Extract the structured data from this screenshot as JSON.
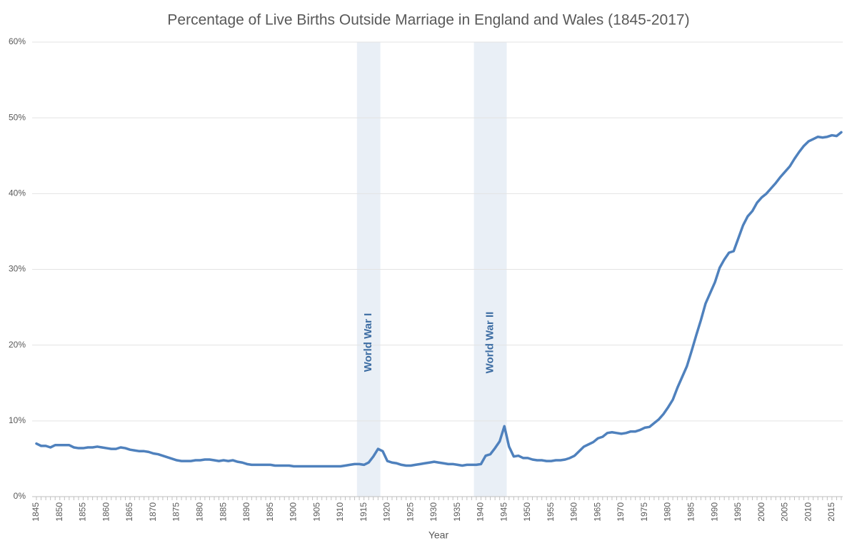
{
  "chart_data": {
    "type": "line",
    "title": "Percentage of Live Births Outside Marriage in England and Wales (1845-2017)",
    "x_label": "Year",
    "x": [
      1845,
      1846,
      1847,
      1848,
      1849,
      1850,
      1851,
      1852,
      1853,
      1854,
      1855,
      1856,
      1857,
      1858,
      1859,
      1860,
      1861,
      1862,
      1863,
      1864,
      1865,
      1866,
      1867,
      1868,
      1869,
      1870,
      1871,
      1872,
      1873,
      1874,
      1875,
      1876,
      1877,
      1878,
      1879,
      1880,
      1881,
      1882,
      1883,
      1884,
      1885,
      1886,
      1887,
      1888,
      1889,
      1890,
      1891,
      1892,
      1893,
      1894,
      1895,
      1896,
      1897,
      1898,
      1899,
      1900,
      1901,
      1902,
      1903,
      1904,
      1905,
      1906,
      1907,
      1908,
      1909,
      1910,
      1911,
      1912,
      1913,
      1914,
      1915,
      1916,
      1917,
      1918,
      1919,
      1920,
      1921,
      1922,
      1923,
      1924,
      1925,
      1926,
      1927,
      1928,
      1929,
      1930,
      1931,
      1932,
      1933,
      1934,
      1935,
      1936,
      1937,
      1938,
      1939,
      1940,
      1941,
      1942,
      1943,
      1944,
      1945,
      1946,
      1947,
      1948,
      1949,
      1950,
      1951,
      1952,
      1953,
      1954,
      1955,
      1956,
      1957,
      1958,
      1959,
      1960,
      1961,
      1962,
      1963,
      1964,
      1965,
      1966,
      1967,
      1968,
      1969,
      1970,
      1971,
      1972,
      1973,
      1974,
      1975,
      1976,
      1977,
      1978,
      1979,
      1980,
      1981,
      1982,
      1983,
      1984,
      1985,
      1986,
      1987,
      1988,
      1989,
      1990,
      1991,
      1992,
      1993,
      1994,
      1995,
      1996,
      1997,
      1998,
      1999,
      2000,
      2001,
      2002,
      2003,
      2004,
      2005,
      2006,
      2007,
      2008,
      2009,
      2010,
      2011,
      2012,
      2013,
      2014,
      2015,
      2016,
      2017
    ],
    "values": [
      7.0,
      6.7,
      6.7,
      6.5,
      6.8,
      6.8,
      6.8,
      6.8,
      6.5,
      6.4,
      6.4,
      6.5,
      6.5,
      6.6,
      6.5,
      6.4,
      6.3,
      6.3,
      6.5,
      6.4,
      6.2,
      6.1,
      6.0,
      6.0,
      5.9,
      5.7,
      5.6,
      5.4,
      5.2,
      5.0,
      4.8,
      4.7,
      4.7,
      4.7,
      4.8,
      4.8,
      4.9,
      4.9,
      4.8,
      4.7,
      4.8,
      4.7,
      4.8,
      4.6,
      4.5,
      4.3,
      4.2,
      4.2,
      4.2,
      4.2,
      4.2,
      4.1,
      4.1,
      4.1,
      4.1,
      4.0,
      4.0,
      4.0,
      4.0,
      4.0,
      4.0,
      4.0,
      4.0,
      4.0,
      4.0,
      4.0,
      4.1,
      4.2,
      4.3,
      4.3,
      4.2,
      4.5,
      5.3,
      6.3,
      6.0,
      4.7,
      4.5,
      4.4,
      4.2,
      4.1,
      4.1,
      4.2,
      4.3,
      4.4,
      4.5,
      4.6,
      4.5,
      4.4,
      4.3,
      4.3,
      4.2,
      4.1,
      4.2,
      4.2,
      4.2,
      4.3,
      5.4,
      5.6,
      6.4,
      7.3,
      9.3,
      6.6,
      5.3,
      5.4,
      5.1,
      5.1,
      4.9,
      4.8,
      4.8,
      4.7,
      4.7,
      4.8,
      4.8,
      4.9,
      5.1,
      5.4,
      6.0,
      6.6,
      6.9,
      7.2,
      7.7,
      7.9,
      8.4,
      8.5,
      8.4,
      8.3,
      8.4,
      8.6,
      8.6,
      8.8,
      9.1,
      9.2,
      9.7,
      10.2,
      10.9,
      11.8,
      12.8,
      14.4,
      15.8,
      17.2,
      19.2,
      21.3,
      23.3,
      25.5,
      26.9,
      28.3,
      30.2,
      31.3,
      32.2,
      32.4,
      34.1,
      35.8,
      37.0,
      37.7,
      38.8,
      39.5,
      40.0,
      40.7,
      41.4,
      42.2,
      42.9,
      43.6,
      44.6,
      45.5,
      46.3,
      46.9,
      47.2,
      47.5,
      47.4,
      47.5,
      47.7,
      47.6,
      48.1
    ],
    "color": "#4f81bd",
    "xlim": [
      1845,
      2017
    ],
    "xticks": [
      1845,
      1850,
      1855,
      1860,
      1865,
      1870,
      1875,
      1880,
      1885,
      1890,
      1895,
      1900,
      1905,
      1910,
      1915,
      1920,
      1925,
      1930,
      1935,
      1940,
      1945,
      1950,
      1955,
      1960,
      1965,
      1970,
      1975,
      1980,
      1985,
      1990,
      1995,
      2000,
      2005,
      2010,
      2015
    ],
    "ylim": [
      0,
      60
    ],
    "yticks": [
      {
        "value": 0,
        "label": "0%"
      },
      {
        "value": 10,
        "label": "10%"
      },
      {
        "value": 20,
        "label": "20%"
      },
      {
        "value": 30,
        "label": "30%"
      },
      {
        "value": 40,
        "label": "40%"
      },
      {
        "value": 50,
        "label": "50%"
      },
      {
        "value": 60,
        "label": "60%"
      }
    ],
    "grid": true,
    "bands": [
      {
        "label": "World War I",
        "start": 1914,
        "end": 1918,
        "color": "#e9eff6"
      },
      {
        "label": "World War II",
        "start": 1939,
        "end": 1945,
        "color": "#e9eff6"
      }
    ]
  }
}
